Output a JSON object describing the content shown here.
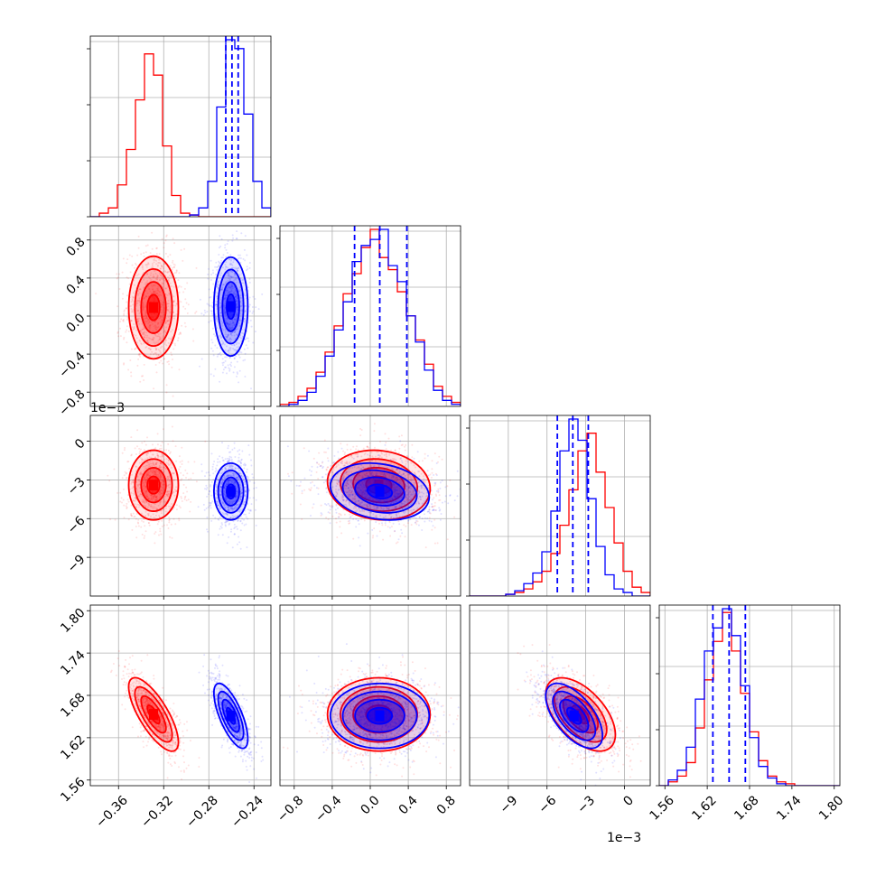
{
  "chart_data": {
    "type": "corner",
    "parameters": [
      {
        "offset_label": "",
        "ticks": [
          -0.36,
          -0.32,
          -0.28,
          -0.24
        ],
        "tick_labels": [
          "−0.36",
          "−0.32",
          "−0.28",
          "−0.24"
        ],
        "range": [
          -0.385,
          -0.225
        ]
      },
      {
        "offset_label": "",
        "ticks": [
          -0.8,
          -0.4,
          0.0,
          0.4,
          0.8
        ],
        "tick_labels": [
          "−0.8",
          "−0.4",
          "0.0",
          "0.4",
          "0.8"
        ],
        "range": [
          -0.95,
          0.95
        ]
      },
      {
        "offset_label": "1e−3",
        "ticks": [
          -9,
          -6,
          -3,
          0
        ],
        "tick_labels": [
          "−9",
          "−6",
          "−3",
          "0"
        ],
        "range": [
          -12,
          2
        ]
      },
      {
        "offset_label": "",
        "ticks": [
          1.56,
          1.62,
          1.68,
          1.74,
          1.8
        ],
        "tick_labels": [
          "1.56",
          "1.62",
          "1.68",
          "1.74",
          "1.80"
        ],
        "range": [
          1.552,
          1.808
        ]
      }
    ],
    "series": [
      {
        "color": "#ff0000",
        "marginals": [
          {
            "edges": [
              -0.385,
              -0.377,
              -0.369,
              -0.361,
              -0.353,
              -0.345,
              -0.337,
              -0.329,
              -0.321,
              -0.313,
              -0.305,
              -0.297,
              -0.289,
              -0.281,
              -0.273,
              -0.265,
              -0.257,
              -0.249,
              -0.241,
              -0.233,
              -0.225
            ],
            "heights": [
              0,
              2,
              5,
              18,
              38,
              66,
              92,
              80,
              40,
              12,
              2,
              1,
              0,
              0,
              0,
              0,
              0,
              0,
              0,
              0
            ]
          },
          {
            "edges": [
              -0.95,
              -0.855,
              -0.76,
              -0.665,
              -0.57,
              -0.475,
              -0.38,
              -0.285,
              -0.19,
              -0.095,
              0.0,
              0.095,
              0.19,
              0.285,
              0.38,
              0.475,
              0.57,
              0.665,
              0.76,
              0.855,
              0.95
            ],
            "heights": [
              1,
              2,
              5,
              9,
              17,
              27,
              40,
              56,
              66,
              79,
              88,
              74,
              68,
              57,
              45,
              33,
              21,
              10,
              5,
              2
            ]
          },
          {
            "edges": [
              -12,
              -11.3,
              -10.6,
              -9.9,
              -9.2,
              -8.5,
              -7.8,
              -7.1,
              -6.4,
              -5.7,
              -5.0,
              -4.3,
              -3.6,
              -2.9,
              -2.2,
              -1.5,
              -0.8,
              -0.1,
              0.6,
              1.3,
              2.0
            ],
            "heights": [
              0,
              0,
              0,
              0,
              1,
              2,
              4,
              8,
              14,
              24,
              40,
              60,
              82,
              92,
              70,
              50,
              30,
              14,
              5,
              2
            ]
          },
          {
            "edges": [
              1.552,
              1.5648,
              1.5776,
              1.5904,
              1.6032,
              1.616,
              1.6288,
              1.6416,
              1.6544,
              1.6672,
              1.68,
              1.6928,
              1.7056,
              1.7184,
              1.7312,
              1.744,
              1.7568,
              1.7696,
              1.7824,
              1.7952,
              1.808
            ],
            "heights": [
              0,
              2,
              5,
              12,
              30,
              55,
              75,
              90,
              70,
              48,
              28,
              13,
              5,
              2,
              1,
              0,
              0,
              0,
              0,
              0
            ]
          }
        ],
        "centers": [
          -0.329,
          0.09,
          -3.4,
          1.653
        ],
        "sigmas": [
          0.011,
          0.27,
          1.35,
          0.026
        ],
        "correlations": {
          "1-0": 0.0,
          "2-0": 0.0,
          "2-1": -0.1,
          "3-0": -0.75,
          "3-1": 0.0,
          "3-2": -0.55
        }
      },
      {
        "color": "#0000ff",
        "marginals": [
          {
            "edges": [
              -0.385,
              -0.377,
              -0.369,
              -0.361,
              -0.353,
              -0.345,
              -0.337,
              -0.329,
              -0.321,
              -0.313,
              -0.305,
              -0.297,
              -0.289,
              -0.281,
              -0.273,
              -0.265,
              -0.257,
              -0.249,
              -0.241,
              -0.233,
              -0.225
            ],
            "heights": [
              0,
              0,
              0,
              0,
              0,
              0,
              0,
              0,
              0,
              0,
              0,
              1,
              5,
              20,
              62,
              100,
              95,
              58,
              20,
              5
            ]
          },
          {
            "edges": [
              -0.95,
              -0.855,
              -0.76,
              -0.665,
              -0.57,
              -0.475,
              -0.38,
              -0.285,
              -0.19,
              -0.095,
              0.0,
              0.095,
              0.19,
              0.285,
              0.38,
              0.475,
              0.57,
              0.665,
              0.76,
              0.855,
              0.95
            ],
            "heights": [
              0,
              1,
              3,
              7,
              15,
              25,
              38,
              52,
              72,
              80,
              83,
              88,
              70,
              62,
              45,
              32,
              18,
              8,
              3,
              1
            ]
          },
          {
            "edges": [
              -12,
              -11.3,
              -10.6,
              -9.9,
              -9.2,
              -8.5,
              -7.8,
              -7.1,
              -6.4,
              -5.7,
              -5.0,
              -4.3,
              -3.6,
              -2.9,
              -2.2,
              -1.5,
              -0.8,
              -0.1,
              0.6,
              1.3,
              2.0
            ],
            "heights": [
              0,
              0,
              0,
              0,
              1,
              3,
              7,
              13,
              25,
              48,
              82,
              100,
              88,
              55,
              28,
              12,
              4,
              2,
              0,
              0
            ]
          },
          {
            "edges": [
              1.552,
              1.5648,
              1.5776,
              1.5904,
              1.6032,
              1.616,
              1.6288,
              1.6416,
              1.6544,
              1.6672,
              1.68,
              1.6928,
              1.7056,
              1.7184,
              1.7312,
              1.744,
              1.7568,
              1.7696,
              1.7824,
              1.7952,
              1.808
            ],
            "heights": [
              0,
              3,
              8,
              20,
              45,
              70,
              82,
              92,
              78,
              52,
              25,
              10,
              4,
              1,
              0,
              0,
              0,
              0,
              0,
              0
            ]
          }
        ],
        "centers": [
          -0.2605,
          0.1,
          -3.9,
          1.651
        ],
        "sigmas": [
          0.0075,
          0.26,
          1.1,
          0.023
        ],
        "correlations": {
          "1-0": 0.0,
          "2-0": 0.0,
          "2-1": -0.2,
          "3-0": -0.7,
          "3-1": 0.0,
          "3-2": -0.6
        },
        "quantiles": [
          [
            -0.265,
            -0.2595,
            -0.254
          ],
          [
            -0.165,
            0.1,
            0.385
          ],
          [
            -5.2,
            -4.0,
            -2.8
          ],
          [
            1.628,
            1.651,
            1.674
          ]
        ]
      }
    ],
    "grid": true,
    "contour_levels_sigma": [
      0.5,
      1.0,
      1.5,
      2.0
    ]
  }
}
